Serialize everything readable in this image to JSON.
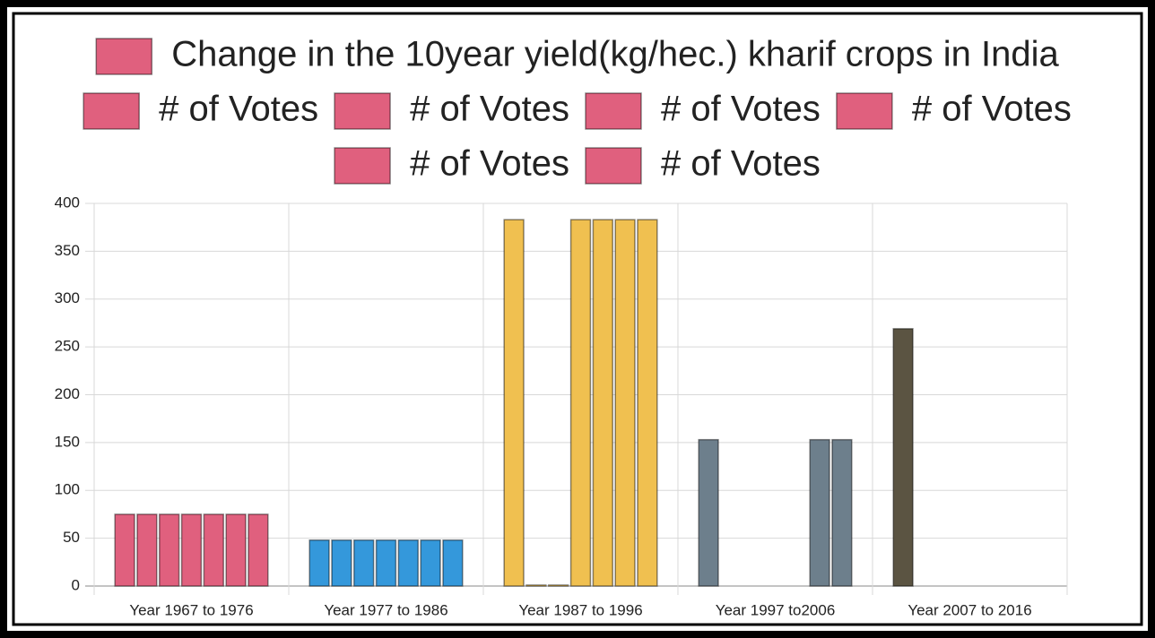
{
  "chart_data": {
    "type": "bar",
    "categories": [
      "Year 1967 to 1976",
      "Year 1977 to 1986",
      "Year 1987 to 1996",
      "Year 1997 to2006",
      "Year 2007 to 2016"
    ],
    "colors": [
      "#e0607e",
      "#3498db",
      "#f0c050",
      "#6d7f8c",
      "#5b5442"
    ],
    "series": [
      {
        "name": "Change in the 10year yield(kg/hec.) kharif crops in India",
        "values": [
          75,
          48,
          383,
          153,
          269
        ]
      },
      {
        "name": "# of Votes",
        "values": [
          75,
          48,
          1,
          0,
          0
        ]
      },
      {
        "name": "# of Votes",
        "values": [
          75,
          48,
          1,
          0,
          0
        ]
      },
      {
        "name": "# of Votes",
        "values": [
          75,
          48,
          383,
          0,
          0
        ]
      },
      {
        "name": "# of Votes",
        "values": [
          75,
          48,
          383,
          0,
          0
        ]
      },
      {
        "name": "# of Votes",
        "values": [
          75,
          48,
          383,
          153,
          0
        ]
      },
      {
        "name": "# of Votes",
        "values": [
          75,
          48,
          383,
          153,
          0
        ]
      }
    ],
    "ylim": [
      0,
      400
    ],
    "yticks": [
      0,
      50,
      100,
      150,
      200,
      250,
      300,
      350,
      400
    ],
    "grid": true
  }
}
